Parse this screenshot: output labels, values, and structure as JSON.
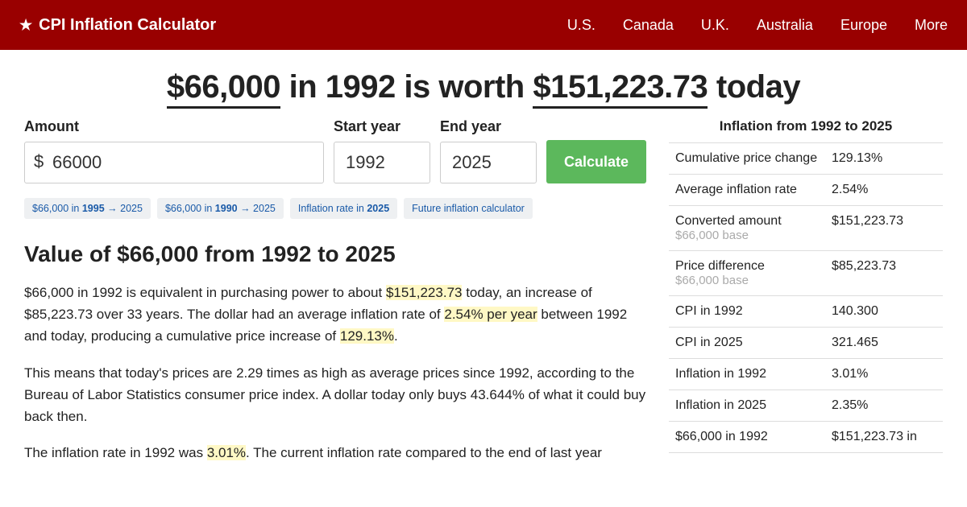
{
  "nav": {
    "brand": "CPI Inflation Calculator",
    "items": [
      "U.S.",
      "Canada",
      "U.K.",
      "Australia",
      "Europe",
      "More"
    ]
  },
  "headline": {
    "amount": "$66,000",
    "mid1": " in 1992 is worth ",
    "result": "$151,223.73",
    "mid2": " today"
  },
  "form": {
    "amount_label": "Amount",
    "amount_value": "66000",
    "start_label": "Start year",
    "start_value": "1992",
    "end_label": "End year",
    "end_value": "2025",
    "button": "Calculate"
  },
  "pills": [
    {
      "pre": "$66,000 in ",
      "bold": "1995",
      "post": " → 2025"
    },
    {
      "pre": "$66,000 in ",
      "bold": "1990",
      "post": " → 2025"
    },
    {
      "pre": "Inflation rate in ",
      "bold": "2025",
      "post": ""
    },
    {
      "pre": "Future inflation calculator",
      "bold": "",
      "post": ""
    }
  ],
  "section_title": "Value of $66,000 from 1992 to 2025",
  "para1": {
    "a": "$66,000 in 1992 is equivalent in purchasing power to about ",
    "h1": "$151,223.73",
    "b": " today, an increase of $85,223.73 over 33 years. The dollar had an average inflation rate of ",
    "h2": "2.54% per year",
    "c": " between 1992 and today, producing a cumulative price increase of ",
    "h3": "129.13%",
    "d": "."
  },
  "para2": "This means that today's prices are 2.29 times as high as average prices since 1992, according to the Bureau of Labor Statistics consumer price index. A dollar today only buys 43.644% of what it could buy back then.",
  "para3": {
    "a": "The inflation rate in 1992 was ",
    "h1": "3.01%",
    "b": ". The current inflation rate compared to the end of last year"
  },
  "stats": {
    "title": "Inflation from 1992 to 2025",
    "rows": [
      {
        "label": "Cumulative price change",
        "sub": "",
        "val": "129.13%"
      },
      {
        "label": "Average inflation rate",
        "sub": "",
        "val": "2.54%"
      },
      {
        "label": "Converted amount",
        "sub": "$66,000 base",
        "val": "$151,223.73"
      },
      {
        "label": "Price difference",
        "sub": "$66,000 base",
        "val": "$85,223.73"
      },
      {
        "label": "CPI in 1992",
        "sub": "",
        "val": "140.300"
      },
      {
        "label": "CPI in 2025",
        "sub": "",
        "val": "321.465"
      },
      {
        "label": "Inflation in 1992",
        "sub": "",
        "val": "3.01%"
      },
      {
        "label": "Inflation in 2025",
        "sub": "",
        "val": "2.35%"
      },
      {
        "label": "$66,000 in 1992",
        "sub": "",
        "val": "$151,223.73 in"
      }
    ]
  }
}
